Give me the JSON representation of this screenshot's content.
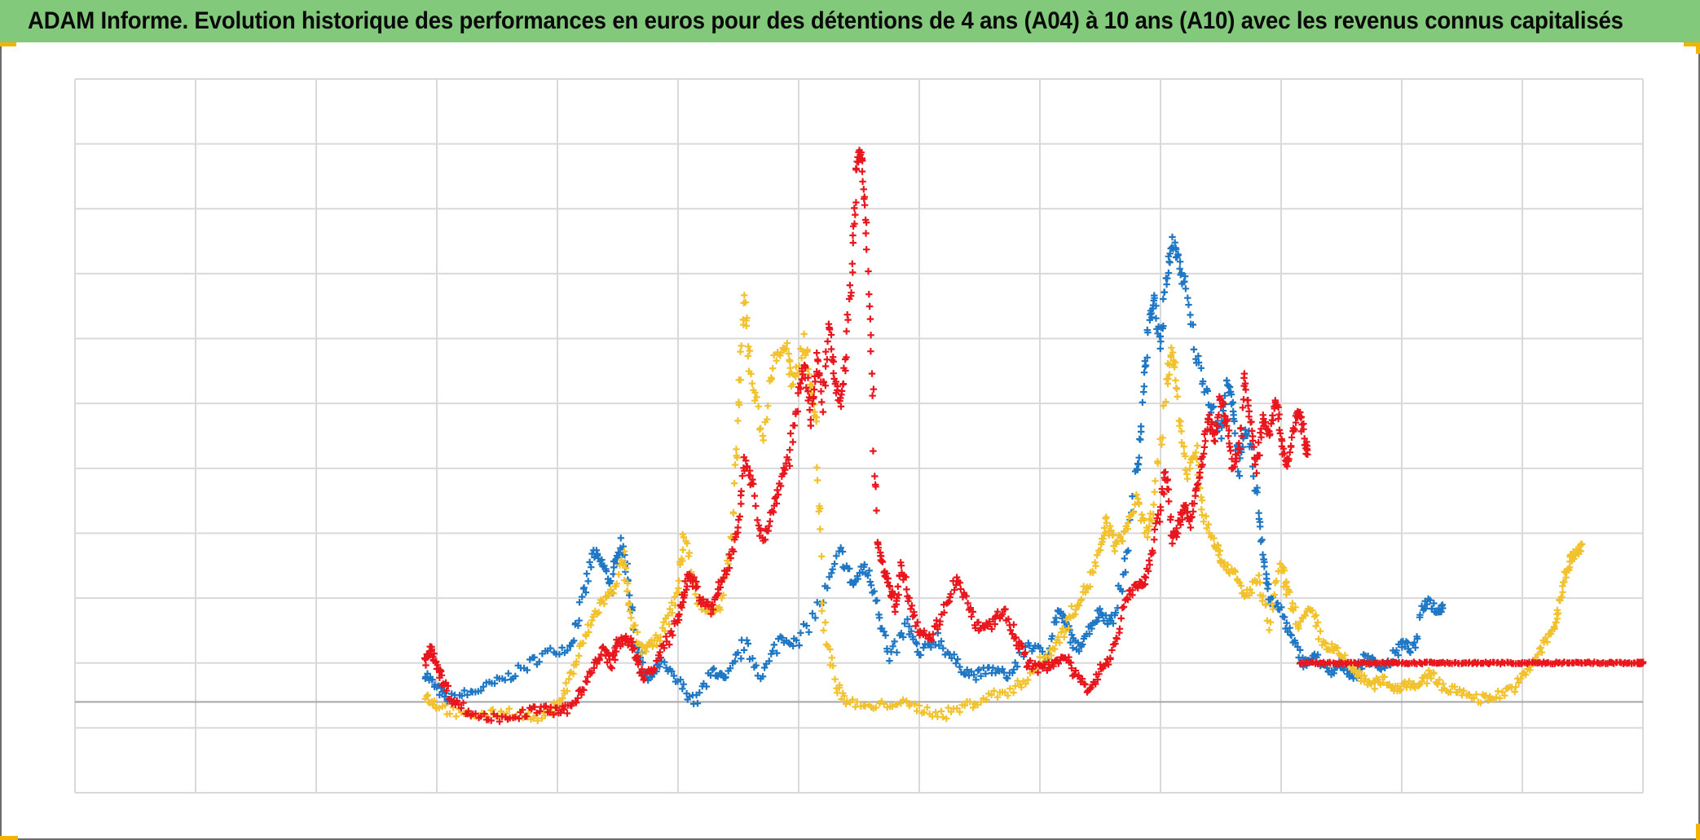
{
  "title": "ADAM Informe. Evolution historique des performances en euros pour des détentions de 4 ans (A04) à 10 ans (A10) avec les revenus connus capitalisés",
  "colors": {
    "title_bar": "#82c97c",
    "grid": "#d9d9d9",
    "zero_line": "#a6a6a6",
    "corner_accent": "#f1b400"
  },
  "chart_data": {
    "type": "scatter",
    "title": "ADAM Informe. Evolution historique des performances en euros pour des détentions de 4 ans (A04) à 10 ans (A10) avec les revenus connus capitalisés",
    "xlabel": "",
    "ylabel": "",
    "xlim": [
      0,
      13
    ],
    "ylim": [
      -1.4,
      9.6
    ],
    "grid": true,
    "legend": "none",
    "marker": "+",
    "reference_line_y": 0,
    "series": [
      {
        "color": "#1f77c4",
        "points": [
          [
            2.9,
            0.45
          ],
          [
            3.0,
            0.2
          ],
          [
            3.1,
            0.05
          ],
          [
            3.3,
            0.15
          ],
          [
            3.5,
            0.3
          ],
          [
            3.7,
            0.5
          ],
          [
            3.9,
            0.75
          ],
          [
            4.1,
            0.85
          ],
          [
            4.2,
            1.5
          ],
          [
            4.3,
            2.3
          ],
          [
            4.38,
            2.1
          ],
          [
            4.45,
            1.8
          ],
          [
            4.52,
            2.5
          ],
          [
            4.58,
            2.0
          ],
          [
            4.65,
            0.9
          ],
          [
            4.75,
            0.3
          ],
          [
            4.85,
            0.6
          ],
          [
            5.0,
            0.3
          ],
          [
            5.15,
            0.0
          ],
          [
            5.3,
            0.5
          ],
          [
            5.4,
            0.3
          ],
          [
            5.55,
            0.9
          ],
          [
            5.7,
            0.4
          ],
          [
            5.85,
            1.0
          ],
          [
            6.0,
            0.9
          ],
          [
            6.2,
            1.6
          ],
          [
            6.35,
            2.3
          ],
          [
            6.45,
            1.8
          ],
          [
            6.55,
            2.1
          ],
          [
            6.65,
            1.6
          ],
          [
            6.75,
            0.6
          ],
          [
            6.9,
            1.2
          ],
          [
            7.0,
            0.7
          ],
          [
            7.15,
            1.0
          ],
          [
            7.3,
            0.6
          ],
          [
            7.45,
            0.4
          ],
          [
            7.6,
            0.5
          ],
          [
            7.75,
            0.4
          ],
          [
            7.9,
            0.9
          ],
          [
            8.05,
            0.7
          ],
          [
            8.15,
            1.4
          ],
          [
            8.22,
            1.2
          ],
          [
            8.3,
            0.8
          ],
          [
            8.4,
            1.1
          ],
          [
            8.5,
            1.4
          ],
          [
            8.6,
            1.2
          ],
          [
            8.7,
            2.0
          ],
          [
            8.8,
            3.5
          ],
          [
            8.85,
            4.5
          ],
          [
            8.9,
            5.8
          ],
          [
            8.95,
            6.2
          ],
          [
            9.0,
            5.5
          ],
          [
            9.05,
            6.5
          ],
          [
            9.1,
            7.1
          ],
          [
            9.15,
            6.8
          ],
          [
            9.2,
            6.4
          ],
          [
            9.3,
            5.3
          ],
          [
            9.4,
            4.7
          ],
          [
            9.5,
            4.1
          ],
          [
            9.55,
            4.9
          ],
          [
            9.6,
            4.6
          ],
          [
            9.65,
            3.6
          ],
          [
            9.72,
            4.2
          ],
          [
            9.8,
            3.2
          ],
          [
            9.85,
            2.3
          ],
          [
            9.9,
            1.6
          ],
          [
            10.0,
            1.4
          ],
          [
            10.1,
            0.9
          ],
          [
            10.2,
            0.6
          ],
          [
            10.3,
            0.7
          ],
          [
            10.4,
            0.4
          ],
          [
            10.5,
            0.6
          ],
          [
            10.6,
            0.4
          ],
          [
            10.7,
            0.7
          ],
          [
            10.8,
            0.55
          ],
          [
            10.9,
            0.6
          ],
          [
            11.0,
            0.9
          ],
          [
            11.1,
            0.8
          ],
          [
            11.2,
            1.6
          ],
          [
            11.3,
            1.4
          ],
          [
            11.35,
            1.5
          ]
        ]
      },
      {
        "color": "#f2c22e",
        "points": [
          [
            2.9,
            0.1
          ],
          [
            3.0,
            -0.05
          ],
          [
            3.2,
            -0.2
          ],
          [
            3.4,
            -0.2
          ],
          [
            3.6,
            -0.15
          ],
          [
            3.8,
            -0.25
          ],
          [
            3.95,
            -0.15
          ],
          [
            4.05,
            0.1
          ],
          [
            4.15,
            0.6
          ],
          [
            4.25,
            1.1
          ],
          [
            4.35,
            1.5
          ],
          [
            4.45,
            1.7
          ],
          [
            4.55,
            2.2
          ],
          [
            4.6,
            1.3
          ],
          [
            4.7,
            0.8
          ],
          [
            4.8,
            0.9
          ],
          [
            4.9,
            1.2
          ],
          [
            5.0,
            1.7
          ],
          [
            5.05,
            2.6
          ],
          [
            5.15,
            1.6
          ],
          [
            5.25,
            1.4
          ],
          [
            5.35,
            1.5
          ],
          [
            5.45,
            2.5
          ],
          [
            5.5,
            4.5
          ],
          [
            5.55,
            6.2
          ],
          [
            5.6,
            5.1
          ],
          [
            5.7,
            4.1
          ],
          [
            5.8,
            5.3
          ],
          [
            5.9,
            5.5
          ],
          [
            5.95,
            4.8
          ],
          [
            6.05,
            5.6
          ],
          [
            6.1,
            4.9
          ],
          [
            6.15,
            4.2
          ],
          [
            6.2,
            1.4
          ],
          [
            6.3,
            0.3
          ],
          [
            6.4,
            0.0
          ],
          [
            6.6,
            -0.1
          ],
          [
            6.8,
            0.0
          ],
          [
            7.0,
            -0.1
          ],
          [
            7.2,
            -0.2
          ],
          [
            7.4,
            -0.05
          ],
          [
            7.6,
            0.1
          ],
          [
            7.8,
            0.2
          ],
          [
            7.95,
            0.5
          ],
          [
            8.1,
            0.8
          ],
          [
            8.2,
            1.1
          ],
          [
            8.3,
            1.5
          ],
          [
            8.4,
            1.8
          ],
          [
            8.5,
            2.3
          ],
          [
            8.55,
            2.8
          ],
          [
            8.62,
            2.4
          ],
          [
            8.7,
            2.6
          ],
          [
            8.8,
            3.1
          ],
          [
            8.88,
            2.6
          ],
          [
            8.95,
            3.0
          ],
          [
            9.05,
            4.9
          ],
          [
            9.1,
            5.5
          ],
          [
            9.15,
            4.5
          ],
          [
            9.22,
            3.5
          ],
          [
            9.3,
            3.9
          ],
          [
            9.35,
            2.9
          ],
          [
            9.45,
            2.5
          ],
          [
            9.5,
            2.2
          ],
          [
            9.6,
            2.0
          ],
          [
            9.7,
            1.6
          ],
          [
            9.8,
            1.9
          ],
          [
            9.9,
            1.2
          ],
          [
            10.0,
            2.1
          ],
          [
            10.05,
            1.7
          ],
          [
            10.15,
            1.2
          ],
          [
            10.25,
            1.4
          ],
          [
            10.35,
            0.9
          ],
          [
            10.45,
            0.8
          ],
          [
            10.55,
            0.6
          ],
          [
            10.65,
            0.4
          ],
          [
            10.75,
            0.25
          ],
          [
            10.85,
            0.35
          ],
          [
            10.95,
            0.2
          ],
          [
            11.05,
            0.3
          ],
          [
            11.15,
            0.25
          ],
          [
            11.25,
            0.45
          ],
          [
            11.35,
            0.2
          ],
          [
            11.5,
            0.15
          ],
          [
            11.65,
            0.05
          ],
          [
            11.8,
            0.1
          ],
          [
            11.95,
            0.25
          ],
          [
            12.05,
            0.5
          ],
          [
            12.15,
            0.8
          ],
          [
            12.25,
            1.1
          ],
          [
            12.3,
            1.4
          ],
          [
            12.35,
            1.9
          ],
          [
            12.4,
            2.2
          ],
          [
            12.45,
            2.3
          ],
          [
            12.5,
            2.4
          ]
        ]
      },
      {
        "color": "#e8161d",
        "points": [
          [
            2.9,
            0.6
          ],
          [
            2.95,
            0.8
          ],
          [
            3.0,
            0.6
          ],
          [
            3.05,
            0.3
          ],
          [
            3.15,
            0.0
          ],
          [
            3.3,
            -0.2
          ],
          [
            3.5,
            -0.25
          ],
          [
            3.7,
            -0.2
          ],
          [
            3.85,
            -0.1
          ],
          [
            4.0,
            -0.15
          ],
          [
            4.1,
            -0.1
          ],
          [
            4.2,
            0.2
          ],
          [
            4.3,
            0.5
          ],
          [
            4.38,
            0.8
          ],
          [
            4.45,
            0.6
          ],
          [
            4.5,
            0.9
          ],
          [
            4.58,
            1.0
          ],
          [
            4.65,
            0.7
          ],
          [
            4.7,
            0.4
          ],
          [
            4.8,
            0.5
          ],
          [
            4.9,
            0.9
          ],
          [
            5.0,
            1.3
          ],
          [
            5.05,
            1.7
          ],
          [
            5.1,
            2.0
          ],
          [
            5.18,
            1.6
          ],
          [
            5.28,
            1.4
          ],
          [
            5.35,
            1.8
          ],
          [
            5.42,
            2.1
          ],
          [
            5.5,
            2.8
          ],
          [
            5.55,
            3.7
          ],
          [
            5.62,
            3.3
          ],
          [
            5.7,
            2.5
          ],
          [
            5.78,
            2.9
          ],
          [
            5.85,
            3.4
          ],
          [
            5.92,
            3.8
          ],
          [
            6.0,
            4.7
          ],
          [
            6.05,
            5.2
          ],
          [
            6.1,
            4.4
          ],
          [
            6.15,
            5.3
          ],
          [
            6.2,
            4.6
          ],
          [
            6.25,
            5.8
          ],
          [
            6.3,
            5.0
          ],
          [
            6.35,
            4.6
          ],
          [
            6.4,
            5.6
          ],
          [
            6.45,
            7.0
          ],
          [
            6.48,
            8.3
          ],
          [
            6.52,
            8.5
          ],
          [
            6.55,
            7.4
          ],
          [
            6.6,
            5.6
          ],
          [
            6.65,
            2.5
          ],
          [
            6.7,
            2.1
          ],
          [
            6.75,
            1.8
          ],
          [
            6.8,
            1.5
          ],
          [
            6.85,
            2.1
          ],
          [
            6.92,
            1.6
          ],
          [
            7.0,
            1.1
          ],
          [
            7.1,
            1.0
          ],
          [
            7.2,
            1.4
          ],
          [
            7.3,
            1.9
          ],
          [
            7.4,
            1.5
          ],
          [
            7.5,
            1.1
          ],
          [
            7.6,
            1.2
          ],
          [
            7.7,
            1.4
          ],
          [
            7.8,
            1.0
          ],
          [
            7.9,
            0.6
          ],
          [
            8.0,
            0.5
          ],
          [
            8.1,
            0.6
          ],
          [
            8.2,
            0.7
          ],
          [
            8.3,
            0.4
          ],
          [
            8.4,
            0.2
          ],
          [
            8.5,
            0.5
          ],
          [
            8.6,
            0.7
          ],
          [
            8.7,
            1.5
          ],
          [
            8.78,
            1.8
          ],
          [
            8.85,
            1.8
          ],
          [
            8.92,
            2.2
          ],
          [
            9.0,
            3.0
          ],
          [
            9.05,
            3.6
          ],
          [
            9.1,
            2.5
          ],
          [
            9.15,
            2.7
          ],
          [
            9.2,
            3.0
          ],
          [
            9.25,
            2.8
          ],
          [
            9.3,
            3.3
          ],
          [
            9.35,
            3.8
          ],
          [
            9.4,
            4.4
          ],
          [
            9.45,
            4.0
          ],
          [
            9.5,
            4.7
          ],
          [
            9.55,
            4.3
          ],
          [
            9.6,
            3.6
          ],
          [
            9.65,
            3.9
          ],
          [
            9.7,
            5.0
          ],
          [
            9.75,
            4.2
          ],
          [
            9.8,
            3.6
          ],
          [
            9.85,
            4.4
          ],
          [
            9.9,
            4.1
          ],
          [
            9.95,
            4.7
          ],
          [
            10.0,
            4.1
          ],
          [
            10.05,
            3.6
          ],
          [
            10.1,
            4.2
          ],
          [
            10.15,
            4.5
          ],
          [
            10.2,
            4.0
          ],
          [
            10.22,
            3.8
          ]
        ]
      },
      {
        "color": "#e8161d",
        "points": [
          [
            10.15,
            0.6
          ],
          [
            10.5,
            0.6
          ],
          [
            10.85,
            0.6
          ],
          [
            11.2,
            0.6
          ],
          [
            11.55,
            0.6
          ],
          [
            11.9,
            0.6
          ],
          [
            12.25,
            0.6
          ],
          [
            12.6,
            0.6
          ],
          [
            12.95,
            0.6
          ],
          [
            13.0,
            0.6
          ]
        ]
      }
    ]
  }
}
